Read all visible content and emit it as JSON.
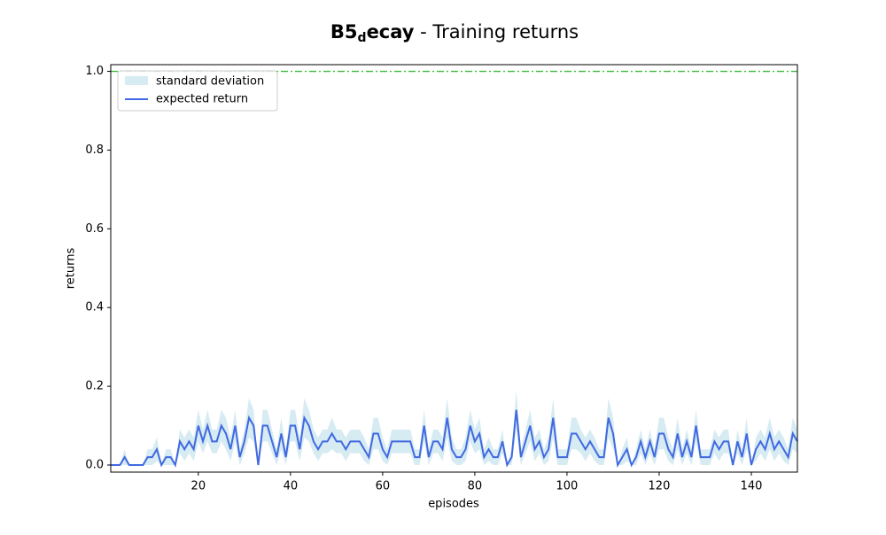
{
  "chart_data": {
    "type": "line",
    "title_parts": [
      "B5",
      "d",
      "ecay",
      " - Training returns"
    ],
    "xlabel": "episodes",
    "ylabel": "returns",
    "x": [
      1,
      2,
      3,
      4,
      5,
      6,
      7,
      8,
      9,
      10,
      11,
      12,
      13,
      14,
      15,
      16,
      17,
      18,
      19,
      20,
      21,
      22,
      23,
      24,
      25,
      26,
      27,
      28,
      29,
      30,
      31,
      32,
      33,
      34,
      35,
      36,
      37,
      38,
      39,
      40,
      41,
      42,
      43,
      44,
      45,
      46,
      47,
      48,
      49,
      50,
      51,
      52,
      53,
      54,
      55,
      56,
      57,
      58,
      59,
      60,
      61,
      62,
      63,
      64,
      65,
      66,
      67,
      68,
      69,
      70,
      71,
      72,
      73,
      74,
      75,
      76,
      77,
      78,
      79,
      80,
      81,
      82,
      83,
      84,
      85,
      86,
      87,
      88,
      89,
      90,
      91,
      92,
      93,
      94,
      95,
      96,
      97,
      98,
      99,
      100,
      101,
      102,
      103,
      104,
      105,
      106,
      107,
      108,
      109,
      110,
      111,
      112,
      113,
      114,
      115,
      116,
      117,
      118,
      119,
      120,
      121,
      122,
      123,
      124,
      125,
      126,
      127,
      128,
      129,
      130,
      131,
      132,
      133,
      134,
      135,
      136,
      137,
      138,
      139,
      140,
      141,
      142,
      143,
      144,
      145,
      146,
      147,
      148,
      149,
      150
    ],
    "series": [
      {
        "name": "standard deviation",
        "color": "#add8e6",
        "values": [
          0,
          0,
          0,
          0.02,
          0,
          0,
          0,
          0,
          0.02,
          0.02,
          0.03,
          0,
          0.02,
          0.02,
          0,
          0.03,
          0.03,
          0.03,
          0.03,
          0.04,
          0.03,
          0.04,
          0.03,
          0.03,
          0.04,
          0.04,
          0.03,
          0.04,
          0.02,
          0.03,
          0.05,
          0.04,
          0,
          0.04,
          0.04,
          0.03,
          0.02,
          0.04,
          0.02,
          0.04,
          0.04,
          0.03,
          0.05,
          0.04,
          0.03,
          0.03,
          0.03,
          0.03,
          0.04,
          0.03,
          0.03,
          0.03,
          0.03,
          0.03,
          0.03,
          0.03,
          0.02,
          0.04,
          0.04,
          0.03,
          0.02,
          0.03,
          0.03,
          0.03,
          0.03,
          0.03,
          0.02,
          0.02,
          0.04,
          0.02,
          0.03,
          0.03,
          0.03,
          0.05,
          0.03,
          0.02,
          0.02,
          0.03,
          0.04,
          0.03,
          0.04,
          0.02,
          0.03,
          0.02,
          0.02,
          0.03,
          0,
          0.02,
          0.05,
          0.02,
          0.03,
          0.04,
          0.03,
          0.03,
          0.02,
          0.03,
          0.05,
          0.02,
          0.02,
          0.02,
          0.04,
          0.04,
          0.03,
          0.03,
          0.03,
          0.03,
          0.02,
          0.02,
          0.05,
          0.04,
          0,
          0.02,
          0.03,
          0,
          0.02,
          0.03,
          0.02,
          0.03,
          0.02,
          0.04,
          0.04,
          0.03,
          0.02,
          0.04,
          0.02,
          0.03,
          0.02,
          0.04,
          0.02,
          0.02,
          0.02,
          0.03,
          0.03,
          0.03,
          0.03,
          0,
          0.03,
          0.02,
          0.04,
          0,
          0.03,
          0.03,
          0.03,
          0.04,
          0.03,
          0.03,
          0.03,
          0.02,
          0.04,
          0.03
        ]
      },
      {
        "name": "expected return",
        "color": "#4169e1",
        "values": [
          0,
          0,
          0,
          0.02,
          0,
          0,
          0,
          0,
          0.02,
          0.02,
          0.04,
          0,
          0.02,
          0.02,
          0,
          0.06,
          0.04,
          0.06,
          0.04,
          0.1,
          0.06,
          0.1,
          0.06,
          0.06,
          0.1,
          0.08,
          0.04,
          0.1,
          0.02,
          0.06,
          0.12,
          0.1,
          0,
          0.1,
          0.1,
          0.06,
          0.02,
          0.08,
          0.02,
          0.1,
          0.1,
          0.04,
          0.12,
          0.1,
          0.06,
          0.04,
          0.06,
          0.06,
          0.08,
          0.06,
          0.06,
          0.04,
          0.06,
          0.06,
          0.06,
          0.04,
          0.02,
          0.08,
          0.08,
          0.04,
          0.02,
          0.06,
          0.06,
          0.06,
          0.06,
          0.06,
          0.02,
          0.02,
          0.1,
          0.02,
          0.06,
          0.06,
          0.04,
          0.12,
          0.04,
          0.02,
          0.02,
          0.04,
          0.1,
          0.06,
          0.08,
          0.02,
          0.04,
          0.02,
          0.02,
          0.06,
          0,
          0.02,
          0.14,
          0.02,
          0.06,
          0.1,
          0.04,
          0.06,
          0.02,
          0.04,
          0.12,
          0.02,
          0.02,
          0.02,
          0.08,
          0.08,
          0.06,
          0.04,
          0.06,
          0.04,
          0.02,
          0.02,
          0.12,
          0.08,
          0,
          0.02,
          0.04,
          0,
          0.02,
          0.06,
          0.02,
          0.06,
          0.02,
          0.08,
          0.08,
          0.04,
          0.02,
          0.08,
          0.02,
          0.06,
          0.02,
          0.1,
          0.02,
          0.02,
          0.02,
          0.06,
          0.04,
          0.06,
          0.06,
          0,
          0.06,
          0.02,
          0.08,
          0,
          0.04,
          0.06,
          0.04,
          0.08,
          0.04,
          0.06,
          0.04,
          0.02,
          0.08,
          0.06
        ]
      }
    ],
    "reference_line": {
      "value": 1.0,
      "color": "#3cb93c"
    },
    "xlim": [
      1,
      150
    ],
    "ylim": [
      -0.018,
      1.017
    ],
    "xticks": [
      20,
      40,
      60,
      80,
      100,
      120,
      140
    ],
    "yticks": [
      {
        "value": 0,
        "label": "0.0"
      },
      0.2,
      0.4,
      0.6,
      0.8,
      {
        "value": 1,
        "label": "1.0"
      }
    ],
    "legend": "upper left"
  }
}
